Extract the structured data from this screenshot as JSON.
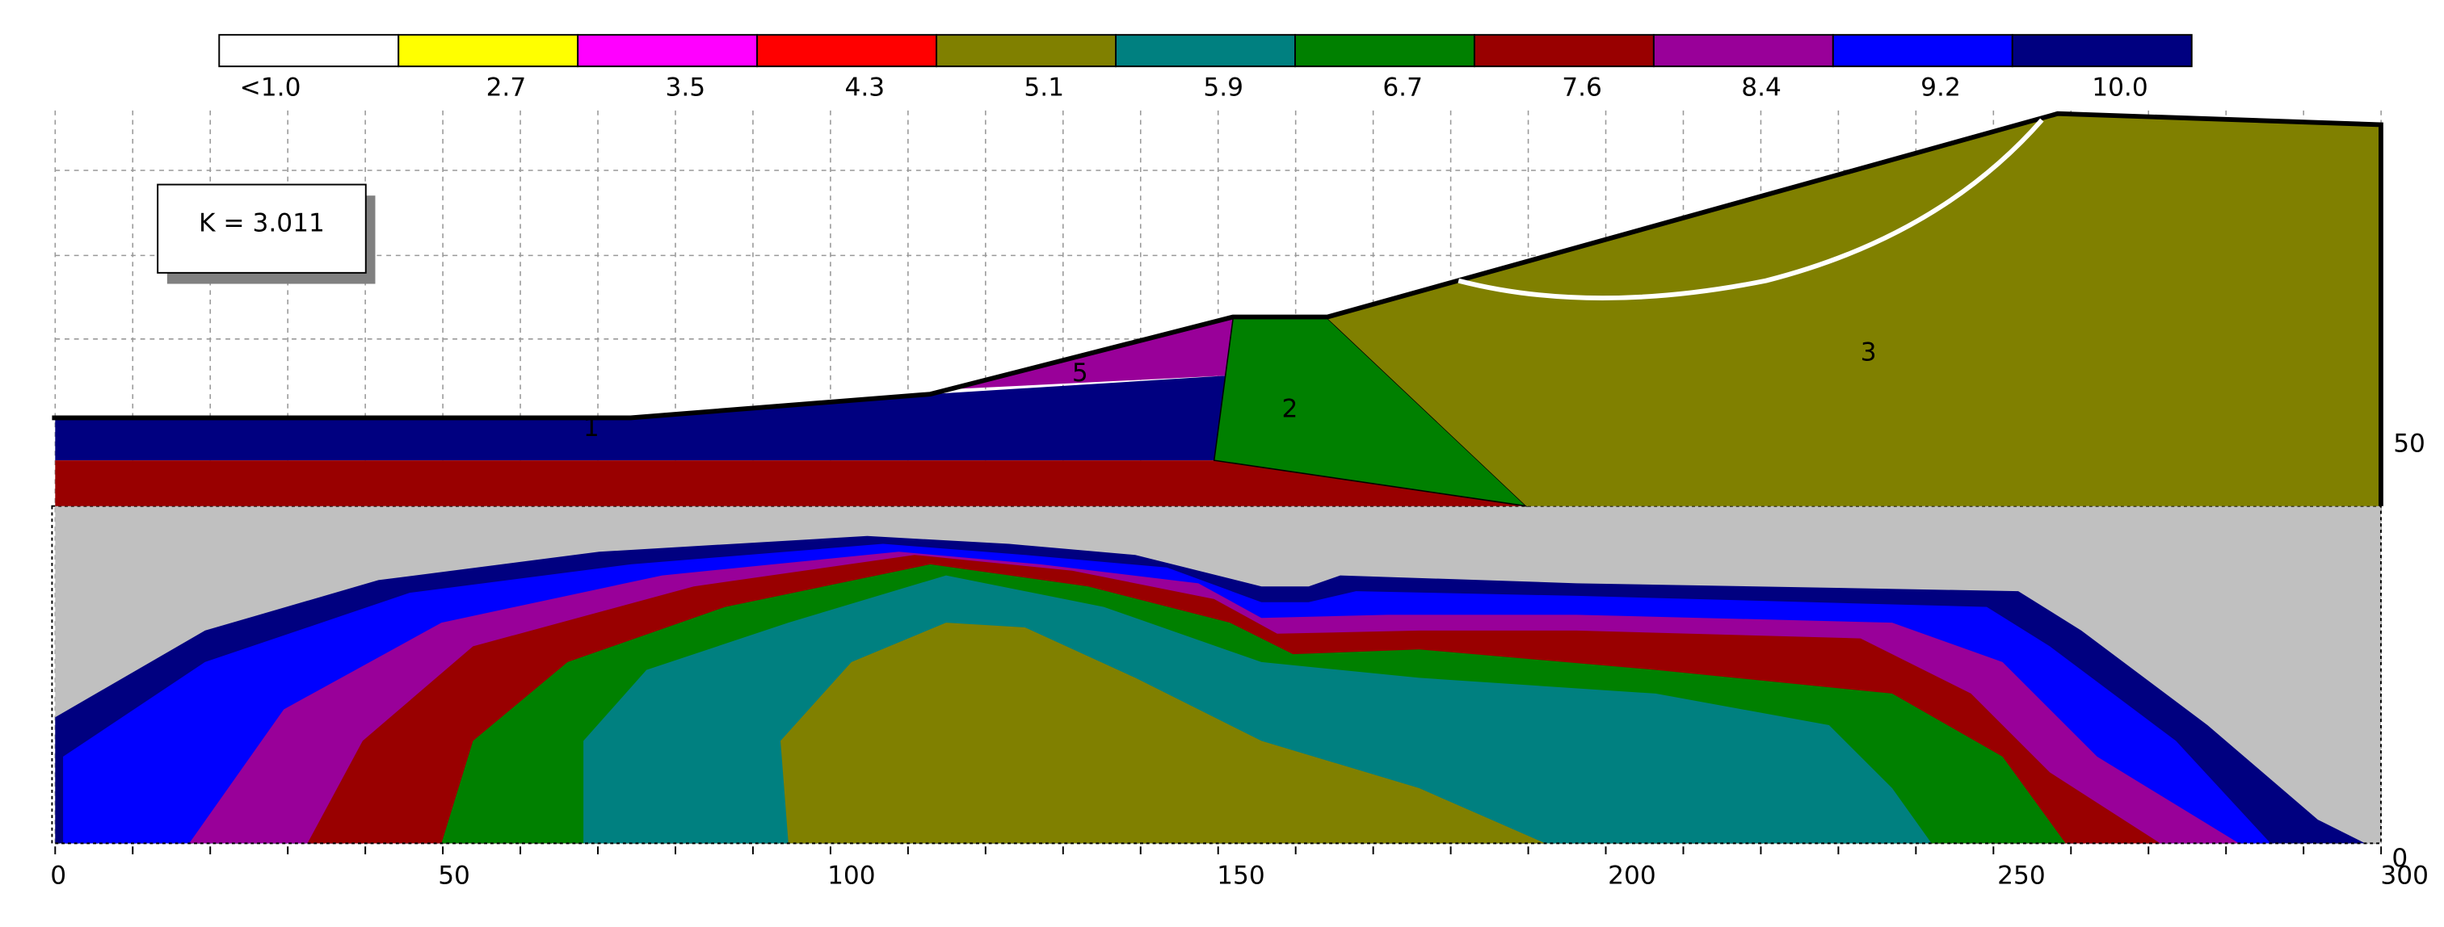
{
  "legend": {
    "items": [
      {
        "label": "<1.0",
        "color": "#ffffff"
      },
      {
        "label": "2.7",
        "color": "#ffff00"
      },
      {
        "label": "3.5",
        "color": "#ff00ff"
      },
      {
        "label": "4.3",
        "color": "#ff0000"
      },
      {
        "label": "5.1",
        "color": "#808000"
      },
      {
        "label": "5.9",
        "color": "#008080"
      },
      {
        "label": "6.7",
        "color": "#008000"
      },
      {
        "label": "7.6",
        "color": "#990000"
      },
      {
        "label": "8.4",
        "color": "#990099"
      },
      {
        "label": "9.2",
        "color": "#0000ff"
      },
      {
        "label": "10.0",
        "color": "#000080"
      }
    ]
  },
  "factor_box": {
    "label": "K = 3.011"
  },
  "x_axis": {
    "ticks": [
      "0",
      "50",
      "100",
      "150",
      "200",
      "250",
      "300"
    ]
  },
  "y_axis": {
    "ticks": [
      "50",
      "0"
    ]
  },
  "regions": [
    {
      "label": "1"
    },
    {
      "label": "2"
    },
    {
      "label": "3"
    },
    {
      "label": "5"
    }
  ]
}
